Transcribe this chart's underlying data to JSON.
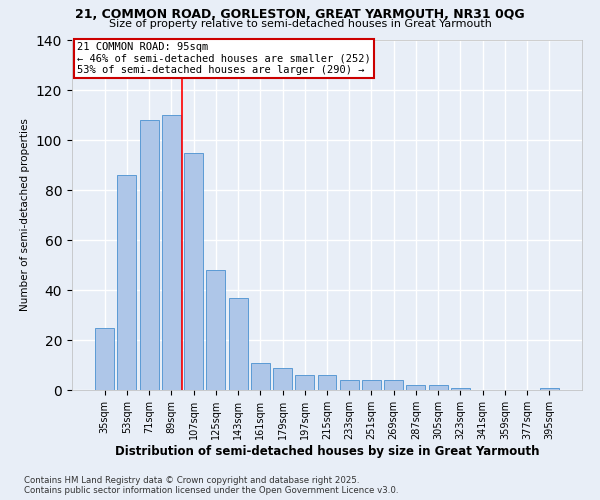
{
  "title1": "21, COMMON ROAD, GORLESTON, GREAT YARMOUTH, NR31 0QG",
  "title2": "Size of property relative to semi-detached houses in Great Yarmouth",
  "xlabel": "Distribution of semi-detached houses by size in Great Yarmouth",
  "ylabel": "Number of semi-detached properties",
  "categories": [
    "35sqm",
    "53sqm",
    "71sqm",
    "89sqm",
    "107sqm",
    "125sqm",
    "143sqm",
    "161sqm",
    "179sqm",
    "197sqm",
    "215sqm",
    "233sqm",
    "251sqm",
    "269sqm",
    "287sqm",
    "305sqm",
    "323sqm",
    "341sqm",
    "359sqm",
    "377sqm",
    "395sqm"
  ],
  "values": [
    25,
    86,
    108,
    110,
    95,
    48,
    37,
    11,
    9,
    6,
    6,
    4,
    4,
    4,
    2,
    2,
    1,
    0,
    0,
    0,
    1
  ],
  "bar_color": "#aec6e8",
  "bar_edge_color": "#5b9bd5",
  "background_color": "#e8eef7",
  "grid_color": "#ffffff",
  "ref_line_label": "21 COMMON ROAD: 95sqm",
  "annotation_line1": "← 46% of semi-detached houses are smaller (252)",
  "annotation_line2": "53% of semi-detached houses are larger (290) →",
  "annotation_box_color": "#ffffff",
  "annotation_box_edge": "#cc0000",
  "ylim": [
    0,
    140
  ],
  "yticks": [
    0,
    20,
    40,
    60,
    80,
    100,
    120,
    140
  ],
  "footnote1": "Contains HM Land Registry data © Crown copyright and database right 2025.",
  "footnote2": "Contains public sector information licensed under the Open Government Licence v3.0."
}
